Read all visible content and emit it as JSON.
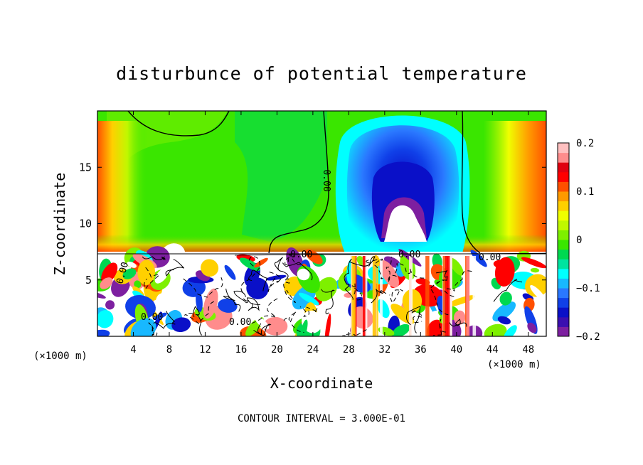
{
  "chart_data": {
    "type": "heatmap",
    "title": "disturbunce of potential temperature",
    "xlabel": "X-coordinate",
    "ylabel": "Z-coordinate",
    "x_unit_label": "(×1000 m)",
    "x_unit_label_right": "(×1000 m)",
    "xlim": [
      0,
      50
    ],
    "ylim": [
      0,
      20
    ],
    "x_ticks": [
      "4",
      "8",
      "12",
      "16",
      "20",
      "24",
      "28",
      "32",
      "36",
      "40",
      "44",
      "48"
    ],
    "x_tick_values": [
      4,
      8,
      12,
      16,
      20,
      24,
      28,
      32,
      36,
      40,
      44,
      48
    ],
    "y_ticks": [
      "5",
      "10",
      "15"
    ],
    "y_tick_values": [
      5,
      10,
      15
    ],
    "colorbar": {
      "range": [
        -0.2,
        0.2
      ],
      "tick_labels": [
        "0.2",
        "0.1",
        "0",
        "−0.1",
        "−0.2"
      ],
      "tick_values": [
        0.2,
        0.1,
        0,
        -0.1,
        -0.2
      ],
      "colors": [
        "#7d1fa0",
        "#3b0fb0",
        "#0a10c8",
        "#1040e8",
        "#2a78ff",
        "#18b8ff",
        "#00ffff",
        "#00e4a0",
        "#00d850",
        "#3ae600",
        "#7ef000",
        "#c0f800",
        "#f0ff00",
        "#ffd000",
        "#ff9a00",
        "#ff5000",
        "#ff0000",
        "#e00010",
        "#ff8c8c",
        "#ffc0c0"
      ]
    },
    "contour_labels": [
      "0.00",
      "0.00",
      "0.00",
      "0.00",
      "0.00",
      "0.00",
      "0.00"
    ],
    "footer": "CONTOUR INTERVAL = 3.000E-01"
  }
}
